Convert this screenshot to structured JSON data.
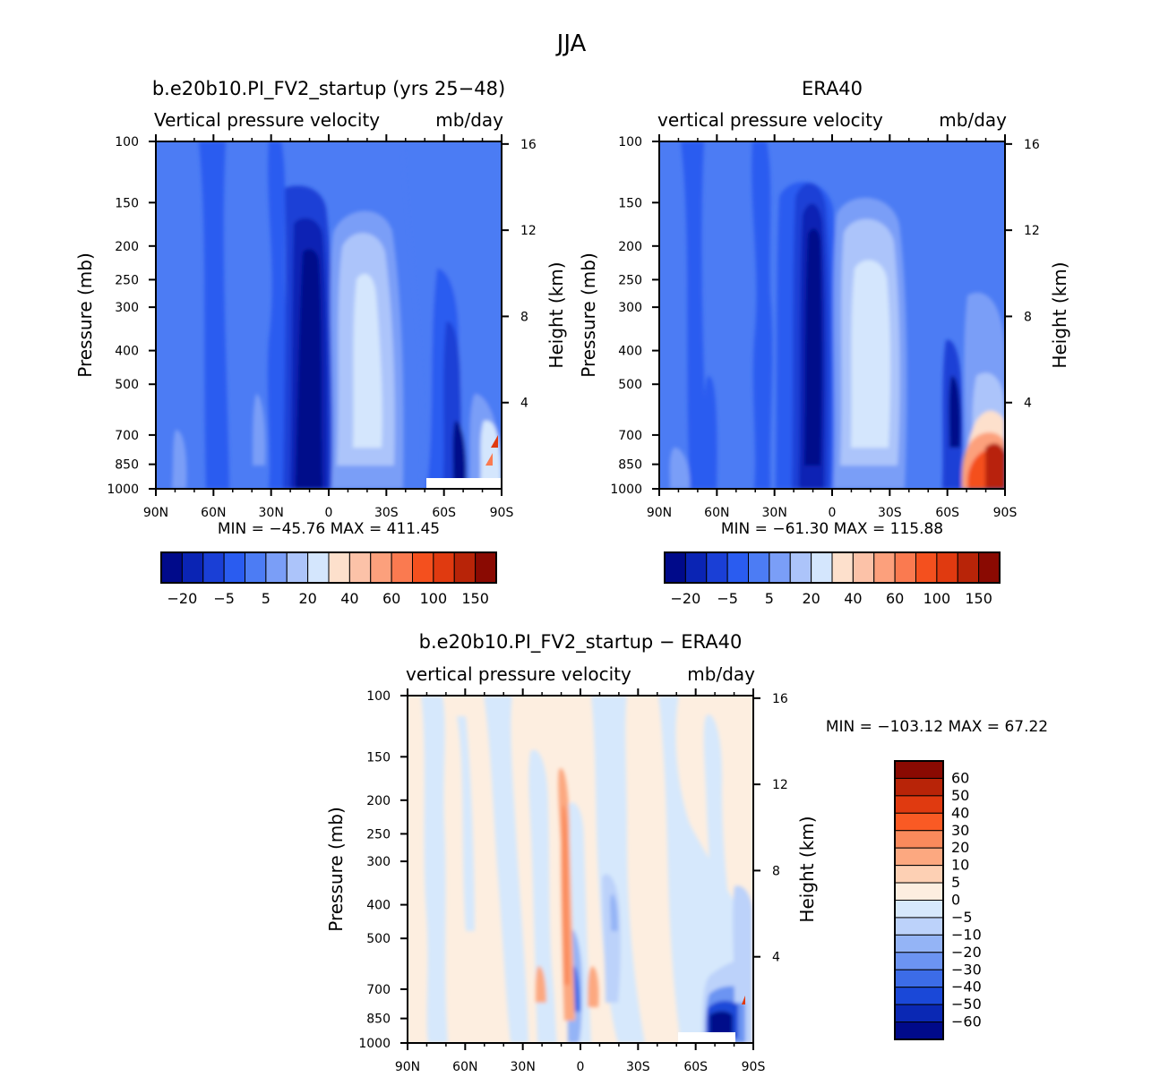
{
  "figure_title": "JJA",
  "chart_data": [
    {
      "type": "heatmap",
      "title": "b.e20b10.PI_FV2_startup (yrs 25−48)",
      "subtitle_left": "Vertical pressure velocity",
      "subtitle_right": "mb/day",
      "ylabel": "Pressure (mb)",
      "ylabel_right": "Height (km)",
      "x_ticks": [
        "90N",
        "60N",
        "30N",
        "0",
        "30S",
        "60S",
        "90S"
      ],
      "y_ticks": [
        "100",
        "150",
        "200",
        "250",
        "300",
        "400",
        "500",
        "700",
        "850",
        "1000"
      ],
      "y_ticks_right": [
        "16",
        "12",
        "8",
        "4"
      ],
      "ylim": [
        1000,
        100
      ],
      "xlim": [
        "90N",
        "90S"
      ],
      "stats": "MIN = −45.76   MAX = 411.45",
      "colorbar": {
        "labels": [
          "−20",
          "−5",
          "5",
          "20",
          "40",
          "60",
          "100",
          "150"
        ],
        "colors": [
          "#000a8a",
          "#0a24b4",
          "#1a3fd6",
          "#2a5cf0",
          "#4c7cf4",
          "#7a9ef7",
          "#acc4fa",
          "#d4e6fd",
          "#fde0cc",
          "#fcc2a8",
          "#fca07c",
          "#fa7a50",
          "#f4501e",
          "#e03a10",
          "#b82408",
          "#8a0a02"
        ]
      }
    },
    {
      "type": "heatmap",
      "title": "ERA40",
      "subtitle_left": "vertical pressure velocity",
      "subtitle_right": "mb/day",
      "ylabel": "Pressure (mb)",
      "ylabel_right": "Height (km)",
      "x_ticks": [
        "90N",
        "60N",
        "30N",
        "0",
        "30S",
        "60S",
        "90S"
      ],
      "y_ticks": [
        "100",
        "150",
        "200",
        "250",
        "300",
        "400",
        "500",
        "700",
        "850",
        "1000"
      ],
      "y_ticks_right": [
        "16",
        "12",
        "8",
        "4"
      ],
      "ylim": [
        1000,
        100
      ],
      "xlim": [
        "90N",
        "90S"
      ],
      "stats": "MIN = −61.30   MAX = 115.88",
      "colorbar": {
        "labels": [
          "−20",
          "−5",
          "5",
          "20",
          "40",
          "60",
          "100",
          "150"
        ],
        "colors": [
          "#000a8a",
          "#0a24b4",
          "#1a3fd6",
          "#2a5cf0",
          "#4c7cf4",
          "#7a9ef7",
          "#acc4fa",
          "#d4e6fd",
          "#fde0cc",
          "#fcc2a8",
          "#fca07c",
          "#fa7a50",
          "#f4501e",
          "#e03a10",
          "#b82408",
          "#8a0a02"
        ]
      }
    },
    {
      "type": "heatmap",
      "title": "b.e20b10.PI_FV2_startup − ERA40",
      "subtitle_left": "vertical pressure velocity",
      "subtitle_right": "mb/day",
      "ylabel": "Pressure (mb)",
      "ylabel_right": "Height (km)",
      "x_ticks": [
        "90N",
        "60N",
        "30N",
        "0",
        "30S",
        "60S",
        "90S"
      ],
      "y_ticks": [
        "100",
        "150",
        "200",
        "250",
        "300",
        "400",
        "500",
        "700",
        "850",
        "1000"
      ],
      "y_ticks_right": [
        "16",
        "12",
        "8",
        "4"
      ],
      "ylim": [
        1000,
        100
      ],
      "xlim": [
        "90N",
        "90S"
      ],
      "stats": "MIN = −103.12   MAX =   67.22",
      "colorbar": {
        "labels": [
          "60",
          "50",
          "40",
          "30",
          "20",
          "10",
          "5",
          "0",
          "−5",
          "−10",
          "−20",
          "−30",
          "−40",
          "−50",
          "−60"
        ],
        "colors": [
          "#8a0a02",
          "#b82408",
          "#e03a10",
          "#fa5a24",
          "#fa8a5c",
          "#fca880",
          "#fdd0b4",
          "#fdeee0",
          "#d6e8fc",
          "#bcd2fa",
          "#94b4f6",
          "#6c94f2",
          "#3c6ce8",
          "#1a48d8",
          "#0a28b4",
          "#000a8a"
        ]
      }
    }
  ]
}
